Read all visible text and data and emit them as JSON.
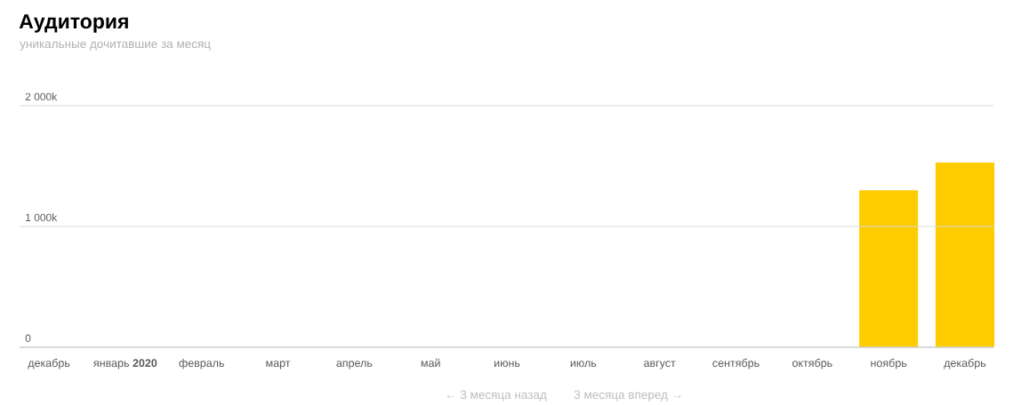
{
  "chart_data": {
    "type": "bar",
    "title": "Аудитория",
    "subtitle": "уникальные дочитавшие за месяц",
    "categories": [
      "декабрь",
      "январь **2020**",
      "февраль",
      "март",
      "апрель",
      "май",
      "июнь",
      "июль",
      "август",
      "сентябрь",
      "октябрь",
      "ноябрь",
      "декабрь"
    ],
    "values": [
      null,
      null,
      null,
      null,
      null,
      null,
      null,
      null,
      null,
      null,
      null,
      1300,
      1530
    ],
    "color": "#ffcc00",
    "ylim": [
      0,
      2000
    ],
    "yticks": [
      0,
      {
        "value": 1000,
        "label": "1 000k"
      },
      {
        "value": 2000,
        "label": "2 000k"
      }
    ],
    "grid": "y",
    "annotations": [
      "← 3 месяца назад",
      "3 месяца вперед →"
    ]
  }
}
